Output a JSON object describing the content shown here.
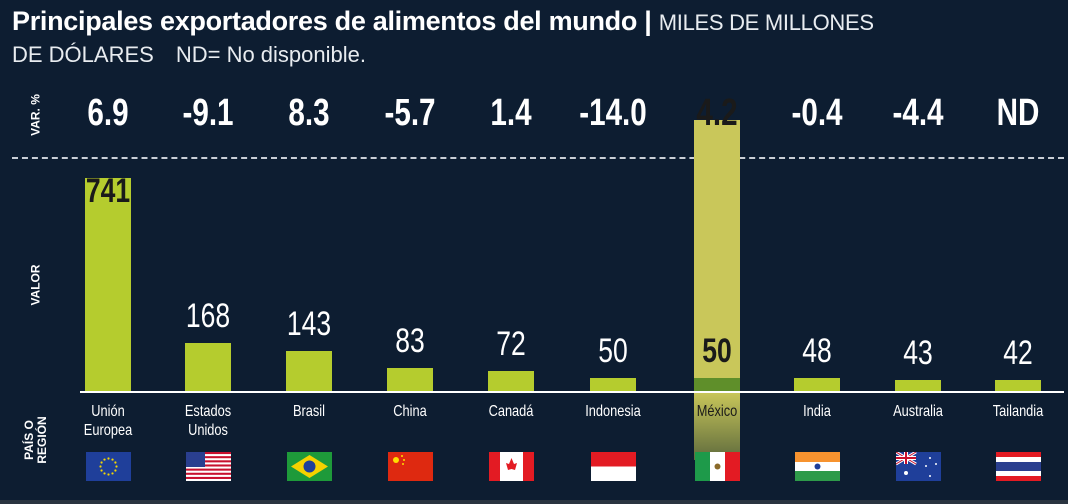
{
  "header": {
    "title": "Principales exportadores de alimentos del mundo",
    "separator": "|",
    "subtitle_part1": "MILES DE MILLONES",
    "subtitle_part2": "DE DÓLARES",
    "note": "ND= No disponible."
  },
  "row_labels": {
    "var": "VAR. %",
    "valor": "VALOR",
    "pais": "PAÍS O REGIÓN"
  },
  "chart_data": {
    "type": "bar",
    "title": "Principales exportadores de alimentos del mundo",
    "ylabel": "Valor (miles de millones de dólares)",
    "categories": [
      "Unión Europea",
      "Estados Unidos",
      "Brasil",
      "China",
      "Canadá",
      "Indonesia",
      "México",
      "India",
      "Australia",
      "Tailandia"
    ],
    "values": [
      741,
      168,
      143,
      83,
      72,
      50,
      50,
      48,
      43,
      42
    ],
    "value_labels": [
      "741",
      "168",
      "143",
      "83",
      "72",
      "50",
      "50",
      "48",
      "43",
      "42"
    ],
    "var_pct": [
      "6.9",
      "-9.1",
      "8.3",
      "-5.7",
      "1.4",
      "-14.0",
      "4.2",
      "-0.4",
      "-4.4",
      "ND"
    ],
    "label_lines": [
      [
        "Unión",
        "Europea"
      ],
      [
        "Estados",
        "Unidos"
      ],
      [
        "Brasil"
      ],
      [
        "China"
      ],
      [
        "Canadá"
      ],
      [
        "Indonesia"
      ],
      [
        "México"
      ],
      [
        "India"
      ],
      [
        "Australia"
      ],
      [
        "Tailandia"
      ]
    ],
    "flags": [
      "eu-flag",
      "us-flag",
      "brazil-flag",
      "china-flag",
      "canada-flag",
      "indonesia-flag",
      "mexico-flag",
      "india-flag",
      "australia-flag",
      "thailand-flag"
    ],
    "highlight": "México",
    "ylim": [
      0,
      741
    ],
    "colors": {
      "bar": "#b5cc2e",
      "highlight": "#c9c75a",
      "background": "#0d1d31"
    }
  }
}
